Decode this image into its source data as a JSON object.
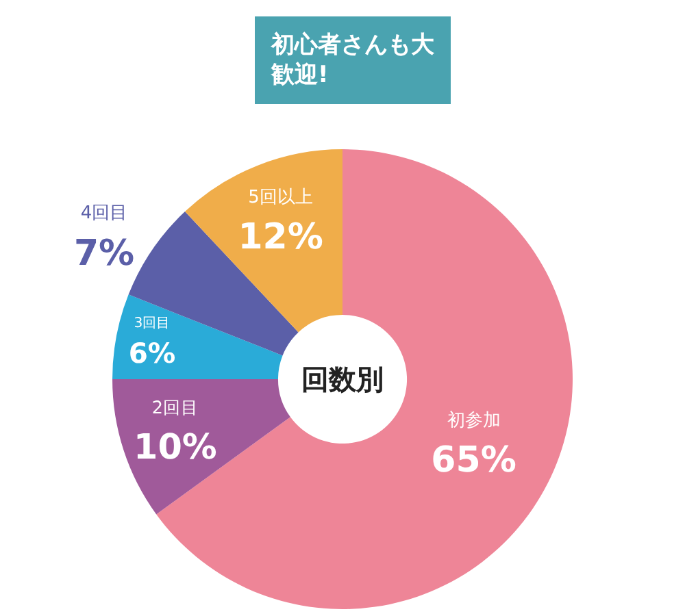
{
  "chart_data": {
    "type": "donut",
    "categories": [
      "初参加",
      "2回目",
      "3回目",
      "4回目",
      "5回以上"
    ],
    "values": [
      65,
      10,
      6,
      7,
      12
    ],
    "value_labels": [
      "65%",
      "10%",
      "6%",
      "7%",
      "12%"
    ],
    "colors": [
      "#ee8597",
      "#a05a9a",
      "#2aabd8",
      "#5b5fa8",
      "#f0ad4a"
    ],
    "annotations": [
      "回数別",
      "初心者さんも大歓迎!"
    ],
    "legend": false
  }
}
